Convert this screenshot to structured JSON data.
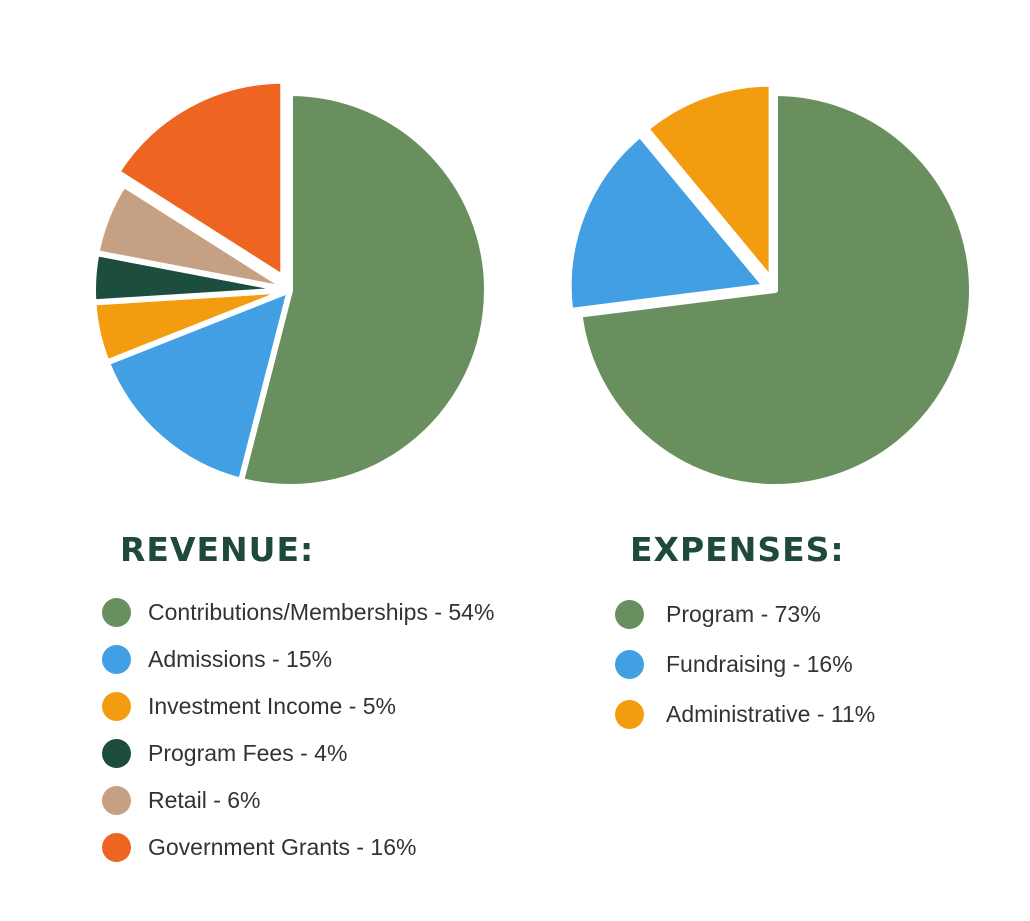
{
  "chart_data": [
    {
      "type": "pie",
      "title": "REVENUE:",
      "slices": [
        {
          "label": "Contributions/Memberships - 54%",
          "value": 54,
          "color": "#6a8f5e",
          "exploded": false
        },
        {
          "label": "Admissions - 15%",
          "value": 15,
          "color": "#439fe3",
          "exploded": false
        },
        {
          "label": "Investment Income - 5%",
          "value": 5,
          "color": "#f49c10",
          "exploded": false
        },
        {
          "label": "Program Fees - 4%",
          "value": 4,
          "color": "#1c4d3e",
          "exploded": false
        },
        {
          "label": "Retail - 6%",
          "value": 6,
          "color": "#c6a083",
          "exploded": false
        },
        {
          "label": "Government Grants - 16%",
          "value": 16,
          "color": "#ee6421",
          "exploded": true
        }
      ],
      "legend_position": "below"
    },
    {
      "type": "pie",
      "title": "EXPENSES:",
      "slices": [
        {
          "label": "Program - 73%",
          "value": 73,
          "color": "#6a8f5e",
          "exploded": false
        },
        {
          "label": "Fundraising - 16%",
          "value": 16,
          "color": "#439fe3",
          "exploded": true
        },
        {
          "label": "Administrative - 11%",
          "value": 11,
          "color": "#f49c10",
          "exploded": true
        }
      ],
      "legend_position": "below"
    }
  ]
}
